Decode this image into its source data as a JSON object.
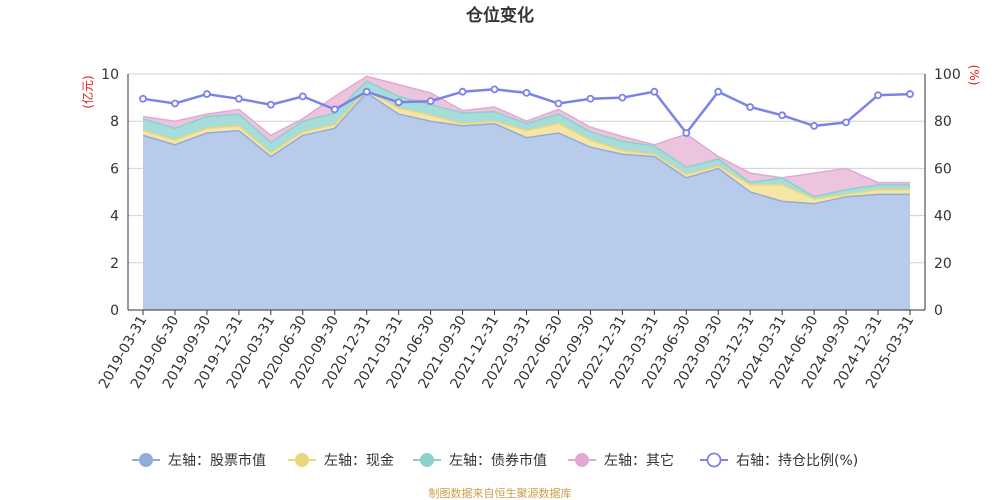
{
  "chart_data": {
    "type": "area",
    "title": "仓位变化",
    "left_axis": {
      "unit": "(亿元)",
      "ylim": [
        0,
        10
      ],
      "ticks": [
        0,
        2,
        4,
        6,
        8,
        10
      ]
    },
    "right_axis": {
      "unit": "(%)",
      "ylim": [
        0,
        100
      ],
      "ticks": [
        0,
        20,
        40,
        60,
        80,
        100
      ]
    },
    "categories": [
      "2019-03-31",
      "2019-06-30",
      "2019-09-30",
      "2019-12-31",
      "2020-03-31",
      "2020-06-30",
      "2020-09-30",
      "2020-12-31",
      "2021-03-31",
      "2021-06-30",
      "2021-09-30",
      "2021-12-31",
      "2022-03-31",
      "2022-06-30",
      "2022-09-30",
      "2022-12-31",
      "2023-03-31",
      "2023-06-30",
      "2023-09-30",
      "2023-12-31",
      "2024-03-31",
      "2024-06-30",
      "2024-09-30",
      "2024-12-31",
      "2025-03-31"
    ],
    "stacked_series": [
      {
        "name": "左轴：股票市值",
        "color": "#b8cbea",
        "line": "#91acdc",
        "values": [
          7.4,
          7.0,
          7.5,
          7.6,
          6.5,
          7.4,
          7.7,
          9.2,
          8.3,
          8.0,
          7.8,
          7.9,
          7.3,
          7.5,
          6.9,
          6.6,
          6.5,
          5.6,
          6.0,
          5.0,
          4.6,
          4.5,
          4.8,
          4.9,
          4.9
        ]
      },
      {
        "name": "左轴：现金",
        "color": "#f6e6a6",
        "line": "#ecd67a",
        "values": [
          0.2,
          0.2,
          0.2,
          0.2,
          0.15,
          0.15,
          0.15,
          0.1,
          0.25,
          0.25,
          0.1,
          0.1,
          0.3,
          0.4,
          0.3,
          0.15,
          0.1,
          0.15,
          0.1,
          0.3,
          0.7,
          0.2,
          0.1,
          0.2,
          0.2
        ]
      },
      {
        "name": "左轴：债券市值",
        "color": "#a6dcd9",
        "line": "#8ed0cc",
        "values": [
          0.5,
          0.5,
          0.5,
          0.5,
          0.45,
          0.45,
          0.5,
          0.4,
          0.5,
          0.45,
          0.45,
          0.4,
          0.3,
          0.4,
          0.35,
          0.4,
          0.35,
          0.3,
          0.3,
          0.1,
          0.3,
          0.1,
          0.2,
          0.2,
          0.2
        ]
      },
      {
        "name": "左轴：其它",
        "color": "#ecc4e0",
        "line": "#e0a9d1",
        "values": [
          0.1,
          0.3,
          0.1,
          0.2,
          0.3,
          0.1,
          0.7,
          0.2,
          0.5,
          0.5,
          0.1,
          0.2,
          0.1,
          0.2,
          0.2,
          0.2,
          0.05,
          1.4,
          0.1,
          0.4,
          0.0,
          1.0,
          0.9,
          0.1,
          0.1
        ]
      }
    ],
    "line_series": {
      "name": "右轴：持仓比例(%)",
      "color": "#7b83e8",
      "values": [
        89.5,
        87.5,
        91.5,
        89.5,
        87,
        90.5,
        85,
        92.5,
        88,
        88.5,
        92.5,
        93.5,
        92,
        87.5,
        89.5,
        90,
        92.5,
        75,
        92.5,
        86,
        82.5,
        78,
        79.5,
        91,
        91.5
      ]
    },
    "source": "制图数据来自恒生聚源数据库"
  }
}
